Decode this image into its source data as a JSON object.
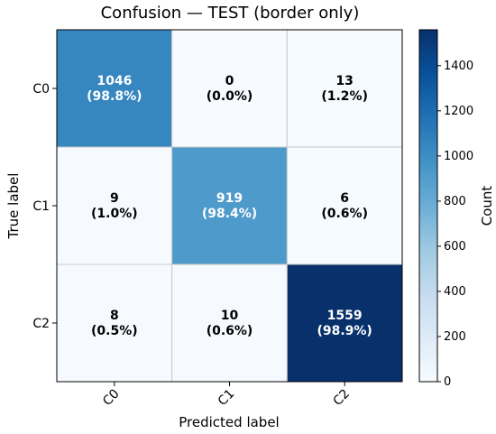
{
  "chart_data": {
    "type": "heatmap",
    "title": "Confusion — TEST (border only)",
    "xlabel": "Predicted label",
    "ylabel": "True label",
    "x_categories": [
      "C0",
      "C1",
      "C2"
    ],
    "y_categories": [
      "C0",
      "C1",
      "C2"
    ],
    "values": [
      [
        1046,
        0,
        13
      ],
      [
        9,
        919,
        6
      ],
      [
        8,
        10,
        1559
      ]
    ],
    "percent_labels": [
      [
        "(98.8%)",
        "(0.0%)",
        "(1.2%)"
      ],
      [
        "(1.0%)",
        "(98.4%)",
        "(0.6%)"
      ],
      [
        "(0.5%)",
        "(0.6%)",
        "(98.9%)"
      ]
    ],
    "colorbar": {
      "label": "Count",
      "range": [
        0,
        1559
      ],
      "ticks": [
        0,
        200,
        400,
        600,
        800,
        1000,
        1200,
        1400
      ]
    },
    "colormap": "Blues",
    "text_color_light": "#ffffff",
    "text_color_dark": "#000000"
  }
}
